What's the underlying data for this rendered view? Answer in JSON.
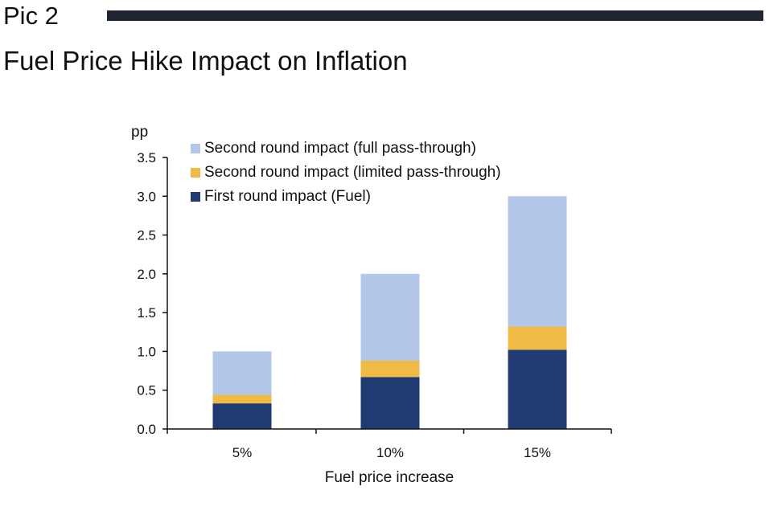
{
  "header": {
    "pic_label": "Pic 2",
    "title": "Fuel Price Hike Impact on Inflation"
  },
  "chart_data": {
    "type": "bar",
    "stacked": true,
    "categories": [
      "5%",
      "10%",
      "15%"
    ],
    "xlabel": "Fuel price increase",
    "ylabel": "pp",
    "ylim": [
      0,
      3.5
    ],
    "yticks": [
      0.0,
      0.5,
      1.0,
      1.5,
      2.0,
      2.5,
      3.0,
      3.5
    ],
    "ytick_labels": [
      "0.0",
      "0.5",
      "1.0",
      "1.5",
      "2.0",
      "2.5",
      "3.0",
      "3.5"
    ],
    "grid": false,
    "legend_position": "top-left",
    "series": [
      {
        "name": "First round impact (Fuel)",
        "color": "#203a72",
        "values": [
          0.33,
          0.67,
          1.02
        ]
      },
      {
        "name": "Second round impact (limited pass-through)",
        "color": "#f0bb45",
        "values": [
          0.11,
          0.21,
          0.3
        ]
      },
      {
        "name": "Second round impact (full pass-through)",
        "color": "#b3c8e8",
        "values": [
          0.56,
          1.12,
          1.68
        ]
      }
    ],
    "legend_order": [
      2,
      1,
      0
    ]
  }
}
